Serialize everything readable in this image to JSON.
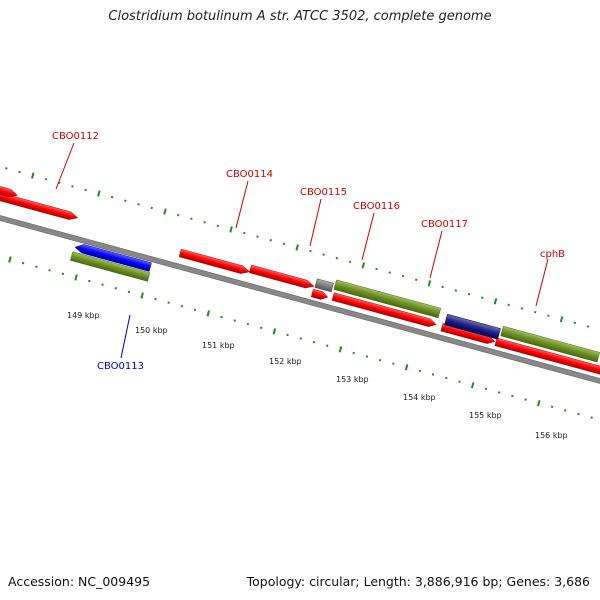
{
  "title": "Clostridium botulinum A str. ATCC 3502, complete genome",
  "footer": {
    "accession": "Accession: NC_009495",
    "summary": "Topology: circular; Length: 3,886,916 bp; Genes: 3,686"
  },
  "colors": {
    "cds_plus": "#ff0000",
    "cds_minus": "#0000ff",
    "gene": "#6b8e23",
    "ticks": "#228b22",
    "backbone": "#808080",
    "label_red": "#cc0000",
    "label_blue": "#0000aa"
  },
  "ticks_kbp": [
    {
      "label": "149 kbp"
    },
    {
      "label": "150 kbp"
    },
    {
      "label": "151 kbp"
    },
    {
      "label": "152 kbp"
    },
    {
      "label": "153 kbp"
    },
    {
      "label": "154 kbp"
    },
    {
      "label": "155 kbp"
    },
    {
      "label": "156 kbp"
    }
  ],
  "gene_labels": [
    {
      "name": "CBO0112",
      "strand": "plus"
    },
    {
      "name": "CBO0113",
      "strand": "minus"
    },
    {
      "name": "CBO0114",
      "strand": "plus"
    },
    {
      "name": "CBO0115",
      "strand": "plus"
    },
    {
      "name": "CBO0116",
      "strand": "plus"
    },
    {
      "name": "CBO0117",
      "strand": "plus"
    },
    {
      "name": "cphB",
      "strand": "plus"
    }
  ]
}
